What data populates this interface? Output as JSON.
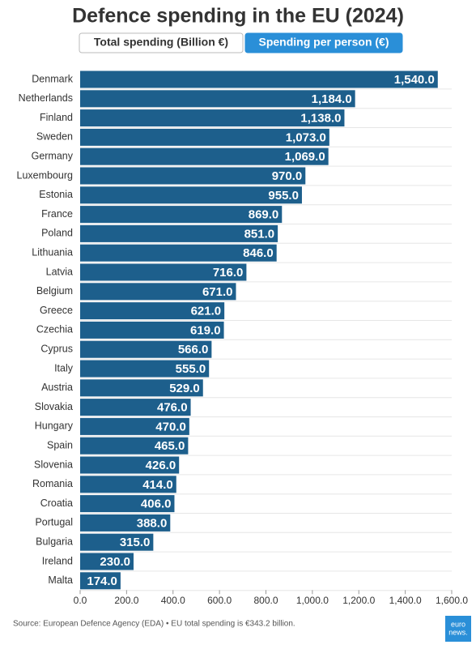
{
  "chart_data": {
    "type": "barh",
    "title": "Defence spending in the EU (2024)",
    "controls": [
      "Total spending (Billion €)",
      "Spending per person (€)"
    ],
    "active_control": 1,
    "categories": [
      "Denmark",
      "Netherlands",
      "Finland",
      "Sweden",
      "Germany",
      "Luxembourg",
      "Estonia",
      "France",
      "Poland",
      "Lithuania",
      "Latvia",
      "Belgium",
      "Greece",
      "Czechia",
      "Cyprus",
      "Italy",
      "Austria",
      "Slovakia",
      "Hungary",
      "Spain",
      "Slovenia",
      "Romania",
      "Croatia",
      "Portugal",
      "Bulgaria",
      "Ireland",
      "Malta"
    ],
    "values": [
      1540,
      1184,
      1138,
      1073,
      1069,
      970,
      955,
      869,
      851,
      846,
      716,
      671,
      621,
      619,
      566,
      555,
      529,
      476,
      470,
      465,
      426,
      414,
      406,
      388,
      315,
      230,
      174
    ],
    "value_labels": [
      "1,540.0",
      "1,184.0",
      "1,138.0",
      "1,073.0",
      "1,069.0",
      "970.0",
      "955.0",
      "869.0",
      "851.0",
      "846.0",
      "716.0",
      "671.0",
      "621.0",
      "619.0",
      "566.0",
      "555.0",
      "529.0",
      "476.0",
      "470.0",
      "465.0",
      "426.0",
      "414.0",
      "406.0",
      "388.0",
      "315.0",
      "230.0",
      "174.0"
    ],
    "color": "#1d5f8c",
    "xlim": [
      0,
      1600
    ],
    "xticks": [
      {
        "value": 0,
        "label": "0.0"
      },
      {
        "value": 200,
        "label": "200.0"
      },
      {
        "value": 400,
        "label": "400.0"
      },
      {
        "value": 600,
        "label": "600.0"
      },
      {
        "value": 800,
        "label": "800.0"
      },
      {
        "value": 1000,
        "label": "1,000.0"
      },
      {
        "value": 1200,
        "label": "1,200.0"
      },
      {
        "value": 1400,
        "label": "1,400.0"
      },
      {
        "value": 1600,
        "label": "1,600.0"
      }
    ],
    "source": "Source: European Defence Agency (EDA) • EU total spending is €343.2 billion.",
    "logo": [
      "euro",
      "news."
    ]
  }
}
